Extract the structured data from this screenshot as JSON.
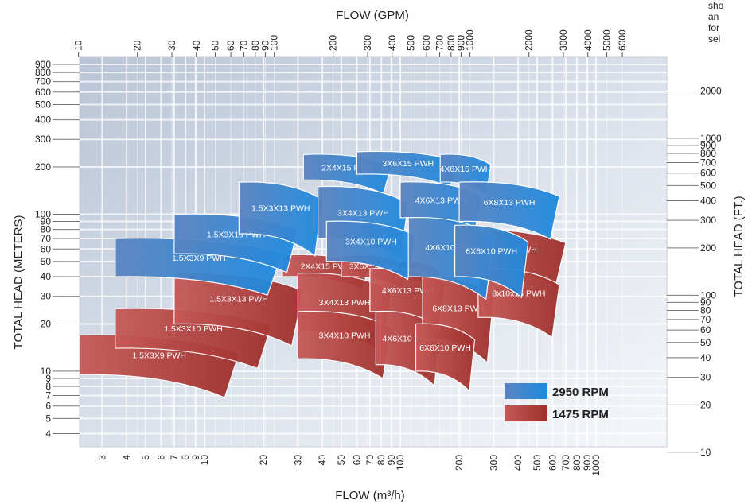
{
  "corner_note": [
    "sho",
    "an",
    "for",
    "sel"
  ],
  "chart_data": {
    "type": "area",
    "title": "",
    "x_top_label": "FLOW (GPM)",
    "x_bottom_label": "FLOW (m³/h)",
    "y_left_label": "TOTAL HEAD (METERS)",
    "y_right_label": "TOTAL HEAD (FT.)",
    "x_scale": "log",
    "y_scale": "log",
    "x_range_m3h": [
      2.3,
      2300
    ],
    "y_range_m": [
      3.3,
      1000
    ],
    "grid": true,
    "x_ticks_gpm": [
      "10",
      "20",
      "30",
      "40",
      "50",
      "60",
      "70",
      "80",
      "90",
      "100",
      "200",
      "300",
      "400",
      "500",
      "600",
      "700",
      "800",
      "900",
      "1000",
      "2000",
      "3000",
      "4000",
      "5000",
      "6000"
    ],
    "x_ticks_m3h": [
      "3",
      "4",
      "5",
      "6",
      "7",
      "8",
      "9",
      "10",
      "20",
      "30",
      "40",
      "50",
      "60",
      "70",
      "80",
      "90",
      "100",
      "200",
      "300",
      "400",
      "500",
      "600",
      "700",
      "800",
      "900",
      "1000"
    ],
    "y_ticks_m": [
      "4",
      "5",
      "6",
      "7",
      "8",
      "9",
      "10",
      "20",
      "30",
      "40",
      "50",
      "60",
      "70",
      "80",
      "90",
      "100",
      "200",
      "300",
      "400",
      "500",
      "600",
      "700",
      "800",
      "900"
    ],
    "y_ticks_ft": [
      "10",
      "20",
      "30",
      "40",
      "50",
      "60",
      "70",
      "80",
      "90",
      "100",
      "200",
      "300",
      "400",
      "500",
      "600",
      "700",
      "800",
      "900",
      "1000",
      "2000"
    ],
    "legend": [
      {
        "label": "2950 RPM",
        "color": "#2a7fd0"
      },
      {
        "label": "1475 RPM",
        "color": "#b33a35"
      }
    ],
    "colors": {
      "2950": "#2a7fd0",
      "1475": "#b33a35"
    },
    "series": [
      {
        "name": "2950 RPM",
        "regions": [
          {
            "label": "1.5X3X9 PWH",
            "q": [
              3.5,
              25
            ],
            "h": [
              40,
              70
            ],
            "droop": 0.22
          },
          {
            "label": "1.5X3X10 PWH",
            "q": [
              7,
              30
            ],
            "h": [
              56,
              100
            ],
            "droop": 0.22
          },
          {
            "label": "1.5X3X13 PWH",
            "q": [
              15,
              40
            ],
            "h": [
              75,
              160
            ],
            "droop": 0.22
          },
          {
            "label": "2X4X15 PWH",
            "q": [
              32,
              90
            ],
            "h": [
              165,
              240
            ],
            "droop": 0.18
          },
          {
            "label": "3X4X13 PWH",
            "q": [
              38,
              110
            ],
            "h": [
              70,
              150
            ],
            "droop": 0.2
          },
          {
            "label": "3X4X10 PWH",
            "q": [
              42,
              120
            ],
            "h": [
              50,
              90
            ],
            "droop": 0.2
          },
          {
            "label": "3X6X15 PWH",
            "q": [
              60,
              200
            ],
            "h": [
              180,
              250
            ],
            "droop": 0.16
          },
          {
            "label": "4X6X15 PWH",
            "q": [
              160,
              290
            ],
            "h": [
              160,
              240
            ],
            "droop": 0.14
          },
          {
            "label": "4X6X13 PWH",
            "q": [
              100,
              260
            ],
            "h": [
              95,
              160
            ],
            "droop": 0.2
          },
          {
            "label": "4X6X10 PWH",
            "q": [
              110,
              300
            ],
            "h": [
              40,
              95
            ],
            "droop": 0.2
          },
          {
            "label": "6X8X13 PWH",
            "q": [
              200,
              650
            ],
            "h": [
              90,
              160
            ],
            "droop": 0.2
          },
          {
            "label": "6X6X10 PWH",
            "q": [
              190,
              450
            ],
            "h": [
              40,
              85
            ],
            "droop": 0.2
          }
        ]
      },
      {
        "name": "1475 RPM",
        "regions": [
          {
            "label": "1.5X3X9 PWH",
            "q": [
              2.3,
              15
            ],
            "h": [
              9.5,
              17
            ],
            "droop": 0.3
          },
          {
            "label": "1.5X3X10 PWH",
            "q": [
              3.5,
              22
            ],
            "h": [
              14,
              25
            ],
            "droop": 0.25
          },
          {
            "label": "1.5X3X13 PWH",
            "q": [
              7,
              32
            ],
            "h": [
              20,
              42
            ],
            "droop": 0.22
          },
          {
            "label": "2X4X15 PWH",
            "q": [
              25,
              70
            ],
            "h": [
              40,
              55
            ],
            "droop": 0.18
          },
          {
            "label": "3X4X13 PWH",
            "q": [
              30,
              90
            ],
            "h": [
              18,
              42
            ],
            "droop": 0.2
          },
          {
            "label": "3X4X10 PWH",
            "q": [
              30,
              90
            ],
            "h": [
              12,
              24
            ],
            "droop": 0.2
          },
          {
            "label": "3X6X15 PWH",
            "q": [
              50,
              110
            ],
            "h": [
              40,
              55
            ],
            "droop": 0.16
          },
          {
            "label": "4X6X15 PWH",
            "q": [
              95,
              160
            ],
            "h": [
              38,
              50
            ],
            "droop": 0.14
          },
          {
            "label": "4X6X13 PWH",
            "q": [
              70,
              170
            ],
            "h": [
              24,
              45
            ],
            "droop": 0.2
          },
          {
            "label": "4X6X10 PWH",
            "q": [
              75,
              160
            ],
            "h": [
              11,
              24
            ],
            "droop": 0.2
          },
          {
            "label": "6X8X13 PWH",
            "q": [
              130,
              300
            ],
            "h": [
              16,
              40
            ],
            "droop": 0.2
          },
          {
            "label": "6X6X10 PWH",
            "q": [
              120,
              240
            ],
            "h": [
              10,
              20
            ],
            "droop": 0.2
          },
          {
            "label": "8x10x21 PWH",
            "q": [
              190,
              700
            ],
            "h": [
              45,
              80
            ],
            "droop": 0.18
          },
          {
            "label": "8x10x15 PWH",
            "q": [
              250,
              650
            ],
            "h": [
              22,
              45
            ],
            "droop": 0.2
          }
        ]
      }
    ]
  }
}
